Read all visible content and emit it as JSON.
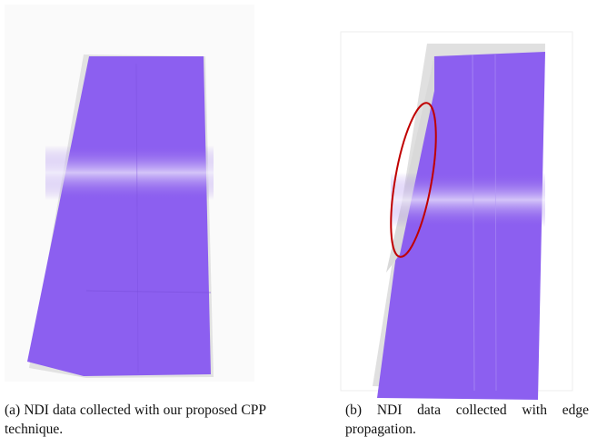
{
  "figures": [
    {
      "caption": "(a) NDI data collected with our proposed CPP technique."
    },
    {
      "caption": "(b) NDI data collected with edge propagation."
    }
  ]
}
